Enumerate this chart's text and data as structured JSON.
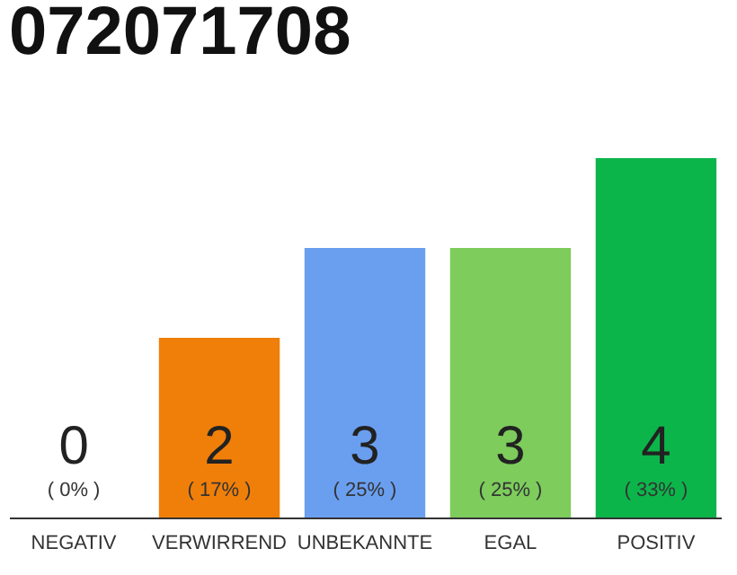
{
  "chart_data": {
    "type": "bar",
    "title": "072071708",
    "categories": [
      "NEGATIV",
      "VERWIRREND",
      "UNBEKANNTE",
      "EGAL",
      "POSITIV"
    ],
    "values": [
      0,
      2,
      3,
      3,
      4
    ],
    "colors": [
      "#8c8c8c",
      "#f07f09",
      "#6a9ff0",
      "#7dcc5c",
      "#0cb54a"
    ],
    "ylim": [
      0,
      4
    ],
    "tick_labels": "x",
    "data_labels": true,
    "annotations": [
      "( 0% )",
      "( 17% )",
      "( 25% )",
      "( 25% )",
      "( 33% )"
    ]
  }
}
